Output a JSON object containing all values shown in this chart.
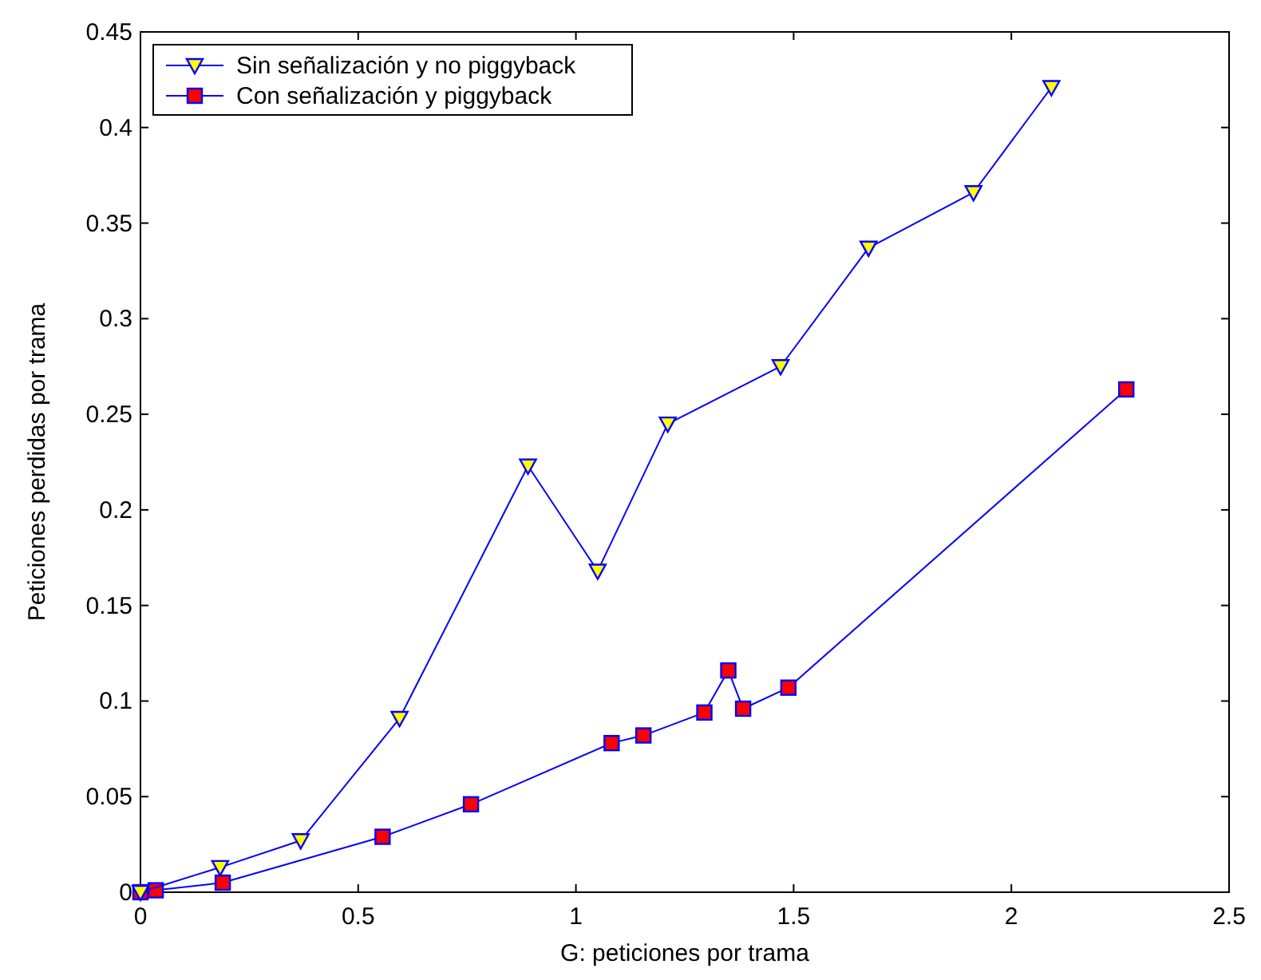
{
  "chart_data": {
    "type": "line",
    "xlabel": "G: peticiones por trama",
    "ylabel": "Peticiones perdidas por trama",
    "xlim": [
      0,
      2.5
    ],
    "xticks": [
      0,
      0.5,
      1,
      1.5,
      2,
      2.5
    ],
    "ylim": [
      0,
      0.45
    ],
    "yticks": [
      0,
      0.05,
      0.1,
      0.15,
      0.2,
      0.25,
      0.3,
      0.35,
      0.4,
      0.45
    ],
    "grid": false,
    "legend": "top left",
    "line_style": "solid",
    "series": [
      {
        "name": "Sin señalización y no piggyback",
        "color": "#ffff00",
        "marker": "triangle",
        "x": [
          0,
          0.183,
          0.368,
          0.595,
          0.89,
          1.05,
          1.211,
          1.47,
          1.672,
          1.913,
          2.092
        ],
        "values": [
          0,
          0.013,
          0.027,
          0.091,
          0.223,
          0.168,
          0.245,
          0.275,
          0.337,
          0.366,
          0.421
        ]
      },
      {
        "name": "Con señalización y piggyback",
        "color": "#ff0000",
        "marker": "square",
        "x": [
          0,
          0.035,
          0.189,
          0.556,
          0.759,
          1.082,
          1.155,
          1.295,
          1.35,
          1.384,
          1.488,
          2.264
        ],
        "values": [
          0,
          0.001,
          0.005,
          0.029,
          0.046,
          0.078,
          0.082,
          0.094,
          0.116,
          0.096,
          0.107,
          0.263
        ]
      }
    ]
  }
}
